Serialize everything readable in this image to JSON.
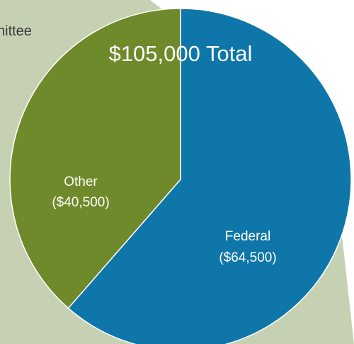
{
  "panel_fragment_text": "nittee",
  "colors": {
    "panel": "#c5d1b2",
    "federal": "#0e76a8",
    "other": "#6f8a2a",
    "stroke": "#ffffff",
    "label": "#ffffff"
  },
  "chart_data": {
    "type": "pie",
    "title": "$105,000 Total",
    "total": 105000,
    "slices": [
      {
        "label": "Federal",
        "value_label": "($64,500)",
        "value": 64500
      },
      {
        "label": "Other",
        "value_label": "($40,500)",
        "value": 40500
      }
    ]
  }
}
